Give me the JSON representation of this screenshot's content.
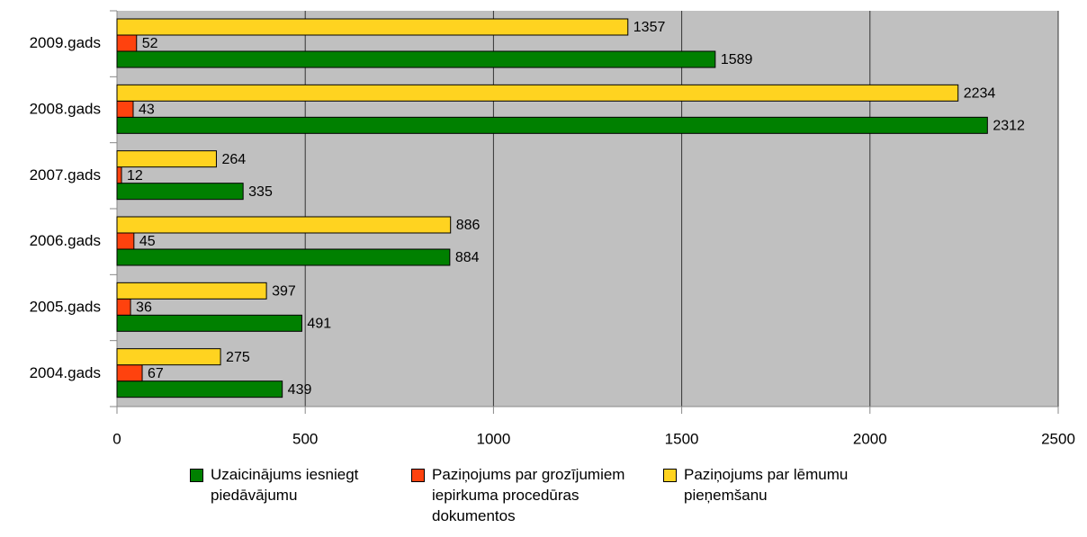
{
  "chart_data": {
    "type": "hbar",
    "categories": [
      "2009.gads",
      "2008.gads",
      "2007.gads",
      "2006.gads",
      "2005.gads",
      "2004.gads"
    ],
    "series": [
      {
        "name": "Uzaicinājums iesniegt piedāvājumu",
        "color": "#008000",
        "values": [
          1589,
          2312,
          335,
          884,
          491,
          439
        ]
      },
      {
        "name": "Paziņojums par grozījumiem iepirkuma procedūras dokumentos",
        "color": "#ff420e",
        "values": [
          52,
          43,
          12,
          45,
          36,
          67
        ]
      },
      {
        "name": "Paziņojums par lēmumu pieņemšanu",
        "color": "#ffd320",
        "values": [
          1357,
          2234,
          264,
          886,
          397,
          275
        ]
      }
    ],
    "xlim": [
      0,
      2500
    ],
    "xticks": [
      0,
      500,
      1000,
      1500,
      2000,
      2500
    ],
    "grid": true,
    "legend": "bottom"
  }
}
